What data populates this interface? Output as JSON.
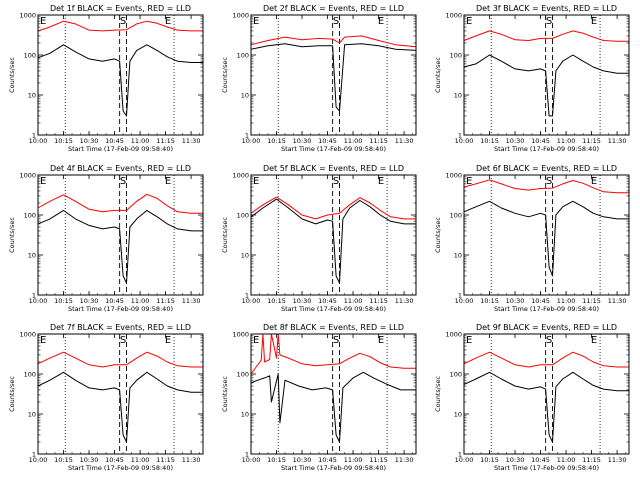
{
  "chart_data": {
    "type": "line",
    "x_ticks": [
      "10:00",
      "10:15",
      "10:30",
      "10:45",
      "11:00",
      "11:15",
      "11:30"
    ],
    "xlim": [
      "10:00",
      "11:37"
    ],
    "xlabel": "Start Time (17-Feb-09 09:58:40)",
    "ylabel": "Counts/sec",
    "y_scale": "log",
    "ylim": [
      1,
      1000
    ],
    "y_ticks": [
      "1",
      "10",
      "100",
      "1000"
    ],
    "markers": {
      "E_labels": [
        "E",
        "E"
      ],
      "S_label": "S",
      "dotted_lines": [
        "10:16",
        "11:20"
      ],
      "dashed_lines": [
        "10:48",
        "10:52"
      ]
    },
    "series_colors": {
      "events": "#000000",
      "lld": "#ff0000"
    },
    "panels": [
      {
        "title": "Det 1f BLACK = Events, RED = LLD",
        "series": [
          {
            "name": "Events",
            "color": "#000000",
            "x": [
              "10:00",
              "10:07",
              "10:15",
              "10:22",
              "10:30",
              "10:38",
              "10:45",
              "10:48",
              "10:50",
              "10:52",
              "10:54",
              "10:58",
              "11:04",
              "11:10",
              "11:16",
              "11:22",
              "11:30",
              "11:37"
            ],
            "values": [
              85,
              110,
              180,
              120,
              80,
              70,
              80,
              70,
              4,
              3,
              70,
              130,
              180,
              130,
              90,
              70,
              65,
              65
            ]
          },
          {
            "name": "LLD",
            "color": "#ff0000",
            "x": [
              "10:00",
              "10:07",
              "10:15",
              "10:22",
              "10:30",
              "10:38",
              "10:45",
              "10:52",
              "10:58",
              "11:04",
              "11:10",
              "11:16",
              "11:22",
              "11:30",
              "11:37"
            ],
            "values": [
              400,
              500,
              700,
              600,
              420,
              400,
              420,
              430,
              600,
              700,
              620,
              500,
              420,
              400,
              400
            ]
          }
        ]
      },
      {
        "title": "Det 2f BLACK = Events, RED = LLD",
        "series": [
          {
            "name": "Events",
            "color": "#000000",
            "x": [
              "10:00",
              "10:10",
              "10:20",
              "10:30",
              "10:40",
              "10:48",
              "10:50",
              "10:52",
              "10:55",
              "11:05",
              "11:15",
              "11:25",
              "11:37"
            ],
            "values": [
              140,
              170,
              190,
              160,
              170,
              170,
              5,
              4,
              180,
              190,
              170,
              140,
              130
            ]
          },
          {
            "name": "LLD",
            "color": "#ff0000",
            "x": [
              "10:00",
              "10:10",
              "10:20",
              "10:30",
              "10:40",
              "10:48",
              "10:52",
              "10:55",
              "11:05",
              "11:15",
              "11:25",
              "11:37"
            ],
            "values": [
              180,
              230,
              280,
              240,
              260,
              250,
              200,
              280,
              300,
              230,
              180,
              160
            ]
          }
        ]
      },
      {
        "title": "Det 3f BLACK = Events, RED = LLD",
        "series": [
          {
            "name": "Events",
            "color": "#000000",
            "x": [
              "10:00",
              "10:07",
              "10:15",
              "10:22",
              "10:30",
              "10:38",
              "10:45",
              "10:48",
              "10:50",
              "10:52",
              "10:54",
              "10:58",
              "11:04",
              "11:10",
              "11:16",
              "11:22",
              "11:30",
              "11:37"
            ],
            "values": [
              50,
              60,
              100,
              70,
              45,
              40,
              45,
              40,
              3,
              3,
              40,
              70,
              100,
              70,
              50,
              40,
              35,
              35
            ]
          },
          {
            "name": "LLD",
            "color": "#ff0000",
            "x": [
              "10:00",
              "10:07",
              "10:15",
              "10:22",
              "10:30",
              "10:38",
              "10:45",
              "10:52",
              "10:58",
              "11:04",
              "11:10",
              "11:16",
              "11:22",
              "11:30",
              "11:37"
            ],
            "values": [
              230,
              300,
              400,
              330,
              240,
              230,
              260,
              260,
              330,
              400,
              350,
              280,
              230,
              220,
              220
            ]
          }
        ]
      },
      {
        "title": "Det 4f BLACK = Events, RED = LLD",
        "series": [
          {
            "name": "Events",
            "color": "#000000",
            "x": [
              "10:00",
              "10:07",
              "10:15",
              "10:22",
              "10:30",
              "10:38",
              "10:45",
              "10:48",
              "10:50",
              "10:52",
              "10:54",
              "10:58",
              "11:04",
              "11:10",
              "11:16",
              "11:22",
              "11:30",
              "11:37"
            ],
            "values": [
              60,
              80,
              130,
              80,
              55,
              45,
              50,
              45,
              3,
              2,
              50,
              80,
              130,
              90,
              60,
              45,
              40,
              40
            ]
          },
          {
            "name": "LLD",
            "color": "#ff0000",
            "x": [
              "10:00",
              "10:07",
              "10:15",
              "10:22",
              "10:30",
              "10:38",
              "10:45",
              "10:52",
              "10:58",
              "11:04",
              "11:10",
              "11:16",
              "11:22",
              "11:30",
              "11:37"
            ],
            "values": [
              150,
              220,
              320,
              220,
              140,
              120,
              130,
              130,
              220,
              330,
              260,
              170,
              120,
              110,
              110
            ]
          }
        ]
      },
      {
        "title": "Det 5f BLACK = Events, RED = LLD",
        "series": [
          {
            "name": "Events",
            "color": "#000000",
            "x": [
              "10:00",
              "10:07",
              "10:15",
              "10:22",
              "10:30",
              "10:38",
              "10:45",
              "10:48",
              "10:50",
              "10:52",
              "10:54",
              "10:58",
              "11:04",
              "11:10",
              "11:16",
              "11:22",
              "11:30",
              "11:37"
            ],
            "values": [
              90,
              150,
              250,
              150,
              80,
              60,
              75,
              70,
              3,
              2,
              80,
              150,
              230,
              160,
              100,
              70,
              60,
              60
            ]
          },
          {
            "name": "LLD",
            "color": "#ff0000",
            "x": [
              "10:00",
              "10:07",
              "10:15",
              "10:22",
              "10:30",
              "10:38",
              "10:45",
              "10:52",
              "10:58",
              "11:04",
              "11:10",
              "11:16",
              "11:22",
              "11:30",
              "11:37"
            ],
            "values": [
              110,
              180,
              280,
              180,
              100,
              80,
              100,
              110,
              180,
              270,
              200,
              130,
              90,
              80,
              80
            ]
          }
        ]
      },
      {
        "title": "Det 6f BLACK = Events, RED = LLD",
        "series": [
          {
            "name": "Events",
            "color": "#000000",
            "x": [
              "10:00",
              "10:07",
              "10:15",
              "10:22",
              "10:30",
              "10:38",
              "10:45",
              "10:48",
              "10:50",
              "10:52",
              "10:54",
              "10:58",
              "11:04",
              "11:10",
              "11:16",
              "11:22",
              "11:30",
              "11:37"
            ],
            "values": [
              120,
              160,
              220,
              150,
              110,
              90,
              110,
              100,
              5,
              3,
              100,
              160,
              220,
              160,
              110,
              90,
              80,
              80
            ]
          },
          {
            "name": "LLD",
            "color": "#ff0000",
            "x": [
              "10:00",
              "10:07",
              "10:15",
              "10:22",
              "10:30",
              "10:38",
              "10:45",
              "10:52",
              "10:58",
              "11:04",
              "11:10",
              "11:16",
              "11:22",
              "11:30",
              "11:37"
            ],
            "values": [
              500,
              600,
              760,
              600,
              460,
              420,
              460,
              470,
              600,
              730,
              620,
              480,
              380,
              360,
              360
            ]
          }
        ]
      },
      {
        "title": "Det 7f BLACK = Events, RED = LLD",
        "series": [
          {
            "name": "Events",
            "color": "#000000",
            "x": [
              "10:00",
              "10:07",
              "10:15",
              "10:22",
              "10:30",
              "10:38",
              "10:45",
              "10:48",
              "10:50",
              "10:52",
              "10:54",
              "10:58",
              "11:04",
              "11:10",
              "11:16",
              "11:22",
              "11:30",
              "11:37"
            ],
            "values": [
              50,
              70,
              110,
              70,
              45,
              40,
              45,
              40,
              3,
              2,
              45,
              70,
              110,
              75,
              50,
              40,
              35,
              35
            ]
          },
          {
            "name": "LLD",
            "color": "#ff0000",
            "x": [
              "10:00",
              "10:07",
              "10:15",
              "10:22",
              "10:30",
              "10:38",
              "10:45",
              "10:52",
              "10:58",
              "11:04",
              "11:10",
              "11:16",
              "11:22",
              "11:30",
              "11:37"
            ],
            "values": [
              180,
              250,
              350,
              250,
              170,
              150,
              170,
              170,
              250,
              350,
              280,
              200,
              160,
              150,
              150
            ]
          }
        ]
      },
      {
        "title": "Det 8f BLACK = Events, RED = LLD",
        "series": [
          {
            "name": "Events",
            "color": "#000000",
            "x": [
              "10:00",
              "10:04",
              "10:08",
              "10:11",
              "10:12",
              "10:16",
              "10:17",
              "10:20",
              "10:28",
              "10:36",
              "10:44",
              "10:48",
              "10:50",
              "10:52",
              "10:54",
              "11:00",
              "11:06",
              "11:12",
              "11:20",
              "11:28",
              "11:37"
            ],
            "values": [
              60,
              70,
              80,
              90,
              20,
              100,
              6,
              70,
              50,
              40,
              45,
              40,
              3,
              2,
              45,
              80,
              110,
              80,
              55,
              40,
              40
            ]
          },
          {
            "name": "LLD",
            "color": "#ff0000",
            "x": [
              "10:00",
              "10:03",
              "10:06",
              "10:07",
              "10:08",
              "10:11",
              "10:12",
              "10:15",
              "10:16",
              "10:17",
              "10:22",
              "10:30",
              "10:38",
              "10:45",
              "10:52",
              "10:58",
              "11:04",
              "11:10",
              "11:16",
              "11:22",
              "11:30",
              "11:37"
            ],
            "values": [
              100,
              150,
              220,
              1000,
              200,
              230,
              1000,
              250,
              1000,
              300,
              250,
              180,
              160,
              170,
              180,
              250,
              330,
              270,
              190,
              150,
              140,
              140
            ]
          }
        ]
      },
      {
        "title": "Det 9f BLACK = Events, RED = LLD",
        "series": [
          {
            "name": "Events",
            "color": "#000000",
            "x": [
              "10:00",
              "10:07",
              "10:15",
              "10:22",
              "10:30",
              "10:38",
              "10:45",
              "10:48",
              "10:50",
              "10:52",
              "10:54",
              "10:58",
              "11:04",
              "11:10",
              "11:16",
              "11:22",
              "11:30",
              "11:37"
            ],
            "values": [
              55,
              75,
              110,
              75,
              50,
              42,
              48,
              42,
              3,
              2,
              48,
              75,
              110,
              75,
              52,
              42,
              38,
              38
            ]
          },
          {
            "name": "LLD",
            "color": "#ff0000",
            "x": [
              "10:00",
              "10:07",
              "10:15",
              "10:22",
              "10:30",
              "10:38",
              "10:45",
              "10:52",
              "10:58",
              "11:04",
              "11:10",
              "11:16",
              "11:22",
              "11:30",
              "11:37"
            ],
            "values": [
              180,
              250,
              350,
              250,
              170,
              150,
              170,
              170,
              250,
              350,
              280,
              200,
              160,
              150,
              150
            ]
          }
        ]
      }
    ]
  }
}
